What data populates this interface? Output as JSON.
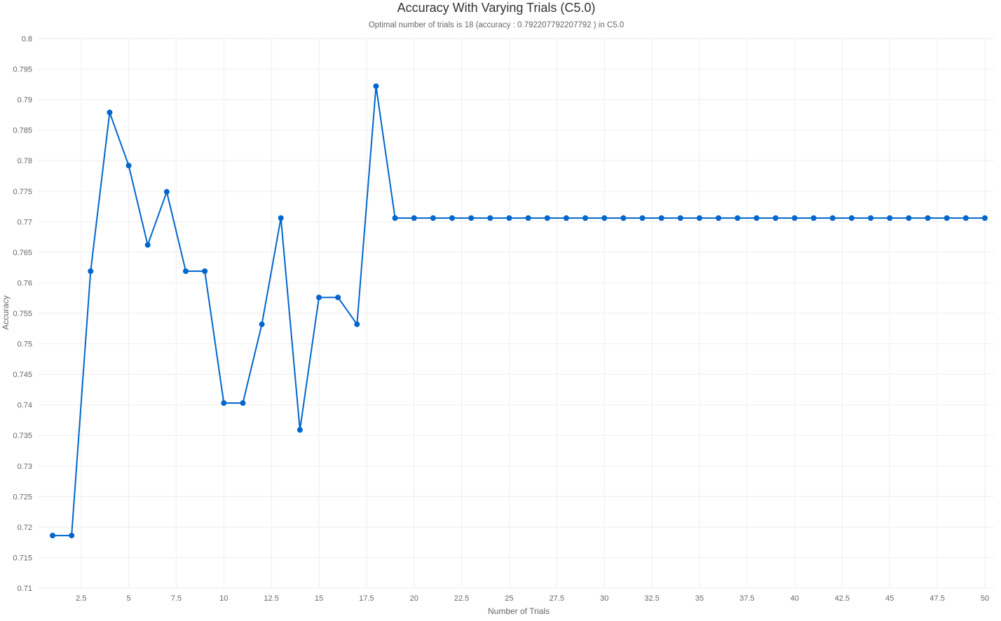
{
  "chart_data": {
    "type": "line",
    "title": "Accuracy With Varying Trials (C5.0)",
    "subtitle": "Optimal number of trials is 18 (accuracy : 0.792207792207792 ) in C5.0",
    "xlabel": "Number of Trials",
    "ylabel": "Accuracy",
    "xlim": [
      0.5,
      50
    ],
    "ylim": [
      0.71,
      0.8
    ],
    "xticks": [
      2.5,
      5,
      7.5,
      10,
      12.5,
      15,
      17.5,
      20,
      22.5,
      25,
      27.5,
      30,
      32.5,
      35,
      37.5,
      40,
      42.5,
      45,
      47.5,
      50
    ],
    "xtick_labels": [
      "2.5",
      "5",
      "7.5",
      "10",
      "12.5",
      "15",
      "17.5",
      "20",
      "22.5",
      "25",
      "27.5",
      "30",
      "32.5",
      "35",
      "37.5",
      "40",
      "42.5",
      "45",
      "47.5",
      "50"
    ],
    "yticks": [
      0.71,
      0.715,
      0.72,
      0.725,
      0.73,
      0.735,
      0.74,
      0.745,
      0.75,
      0.755,
      0.76,
      0.765,
      0.77,
      0.775,
      0.78,
      0.785,
      0.79,
      0.795,
      0.8
    ],
    "ytick_labels": [
      "0.71",
      "0.715",
      "0.72",
      "0.725",
      "0.73",
      "0.735",
      "0.74",
      "0.745",
      "0.75",
      "0.755",
      "0.76",
      "0.765",
      "0.77",
      "0.775",
      "0.78",
      "0.785",
      "0.79",
      "0.795",
      "0.8"
    ],
    "grid": true,
    "series": [
      {
        "color": "#0066cc",
        "x": [
          1,
          2,
          3,
          4,
          5,
          6,
          7,
          8,
          9,
          10,
          11,
          12,
          13,
          14,
          15,
          16,
          17,
          18,
          19,
          20,
          21,
          22,
          23,
          24,
          25,
          26,
          27,
          28,
          29,
          30,
          31,
          32,
          33,
          34,
          35,
          36,
          37,
          38,
          39,
          40,
          41,
          42,
          43,
          44,
          45,
          46,
          47,
          48,
          49,
          50
        ],
        "y": [
          0.7186,
          0.7186,
          0.7619,
          0.7879,
          0.7792,
          0.7662,
          0.7749,
          0.7619,
          0.7619,
          0.7403,
          0.7403,
          0.7532,
          0.7706,
          0.7359,
          0.7576,
          0.7576,
          0.7532,
          0.7922,
          0.7706,
          0.7706,
          0.7706,
          0.7706,
          0.7706,
          0.7706,
          0.7706,
          0.7706,
          0.7706,
          0.7706,
          0.7706,
          0.7706,
          0.7706,
          0.7706,
          0.7706,
          0.7706,
          0.7706,
          0.7706,
          0.7706,
          0.7706,
          0.7706,
          0.7706,
          0.7706,
          0.7706,
          0.7706,
          0.7706,
          0.7706,
          0.7706,
          0.7706,
          0.7706,
          0.7706,
          0.7706
        ]
      }
    ]
  }
}
